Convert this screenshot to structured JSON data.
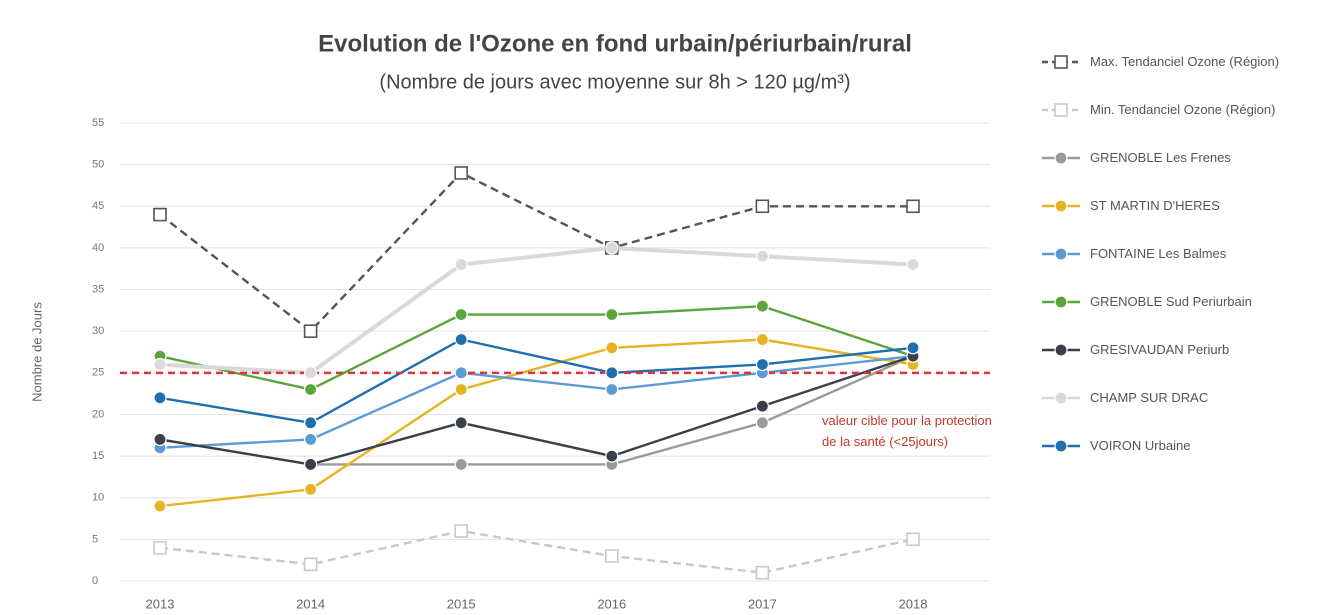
{
  "chart_data": {
    "type": "line",
    "title": "Evolution de l'Ozone en fond urbain/périurbain/rural",
    "subtitle": "(Nombre de jours avec moyenne sur 8h > 120 µg/m³)",
    "y_label": "Nombre de Jours",
    "categories": [
      "2013",
      "2014",
      "2015",
      "2016",
      "2017",
      "2018"
    ],
    "ylim": [
      0,
      55
    ],
    "yticks": [
      0,
      5,
      10,
      15,
      20,
      25,
      30,
      35,
      40,
      45,
      50,
      55
    ],
    "grid": true,
    "legend": "right",
    "target_line": {
      "value": 25,
      "color": "#d9363e",
      "annotation": "valeur cible pour la protection de la santé (<25jours)"
    },
    "series": [
      {
        "name": "Max. Tendanciel Ozone (Région)",
        "color": "#555555",
        "dashed": true,
        "marker": "square",
        "values": [
          44,
          30,
          49,
          40,
          45,
          45
        ]
      },
      {
        "name": "Min. Tendanciel Ozone (Région)",
        "color": "#c8c8c8",
        "dashed": true,
        "marker": "square",
        "values": [
          4,
          2,
          6,
          3,
          1,
          5
        ]
      },
      {
        "name": "GRENOBLE Les Frenes",
        "color": "#9a9a9a",
        "values": [
          17,
          14,
          14,
          14,
          19,
          27
        ]
      },
      {
        "name": "ST MARTIN D'HERES",
        "color": "#e6b422",
        "values": [
          9,
          11,
          23,
          28,
          29,
          26
        ]
      },
      {
        "name": "FONTAINE Les Balmes",
        "color": "#5b9bd5",
        "values": [
          16,
          17,
          25,
          23,
          25,
          27
        ]
      },
      {
        "name": "GRENOBLE Sud Periurbain",
        "color": "#5aa63c",
        "values": [
          27,
          23,
          32,
          32,
          33,
          27
        ]
      },
      {
        "name": "GRESIVAUDAN Periurb",
        "color": "#3a3f4a",
        "values": [
          17,
          14,
          19,
          15,
          21,
          27
        ]
      },
      {
        "name": "CHAMP SUR DRAC",
        "color": "#d9d9d9",
        "values": [
          26,
          25,
          38,
          40,
          39,
          38
        ]
      },
      {
        "name": "VOIRON Urbaine",
        "color": "#1f6fb0",
        "values": [
          22,
          19,
          29,
          25,
          26,
          28
        ]
      }
    ]
  }
}
